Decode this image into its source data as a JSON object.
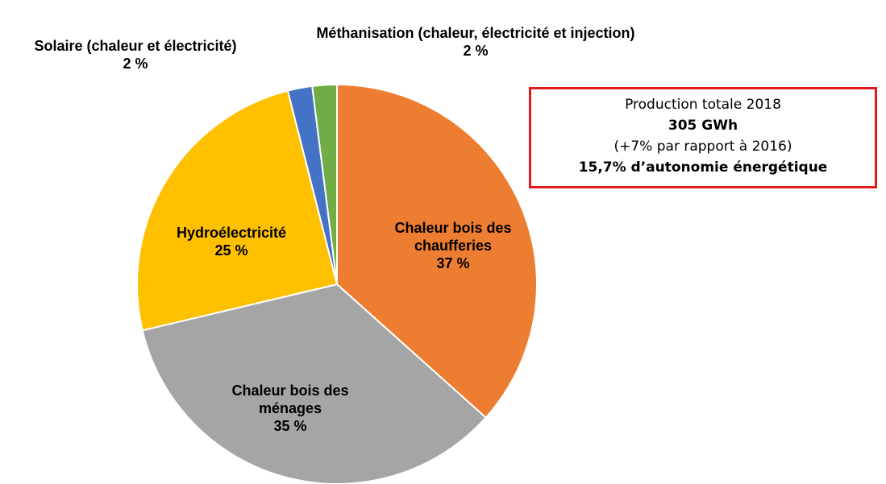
{
  "chart_data": {
    "type": "pie",
    "categories": [
      "Chaleur bois des chaufferies",
      "Chaleur bois des ménages",
      "Hydroélectricité",
      "Solaire (chaleur et électricité)",
      "Méthanisation (chaleur, électricité et injection)"
    ],
    "values": [
      37,
      35,
      25,
      2,
      2
    ],
    "value_labels": [
      "37 %",
      "35 %",
      "25 %",
      "2 %",
      "2 %"
    ],
    "colors": [
      "#ed7d31",
      "#a5a5a5",
      "#ffc000",
      "#4472c4",
      "#70ad47"
    ],
    "annotations": [
      "Production totale 2018",
      "305 GWh",
      "(+7% par rapport à 2016)",
      "15,7% d’autonomie énergétique"
    ]
  }
}
